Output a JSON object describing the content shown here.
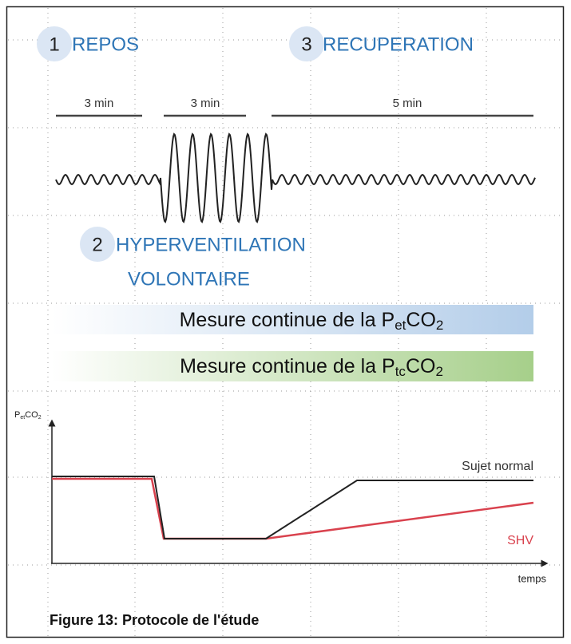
{
  "steps": [
    {
      "number": "1",
      "lines": [
        "REPOS"
      ]
    },
    {
      "number": "3",
      "lines": [
        "RECUPERATION"
      ]
    },
    {
      "number": "2",
      "lines": [
        "HYPERVENTILATION",
        "VOLONTAIRE"
      ]
    }
  ],
  "durations": [
    "3 min",
    "3 min",
    "5 min"
  ],
  "measures": [
    {
      "text": "Mesure continue de la P",
      "sub": "et",
      "text2": "CO",
      "sub2": "2"
    },
    {
      "text": "Mesure continue de la P",
      "sub": "tc",
      "text2": "CO",
      "sub2": "2"
    }
  ],
  "graph": {
    "y_label": {
      "text": "P",
      "sub": "et",
      "text2": "CO",
      "sub2": "2"
    },
    "x_label": "temps",
    "series": [
      "Sujet normal",
      "SHV"
    ]
  },
  "caption": "Figure 13: Protocole de l'étude"
}
